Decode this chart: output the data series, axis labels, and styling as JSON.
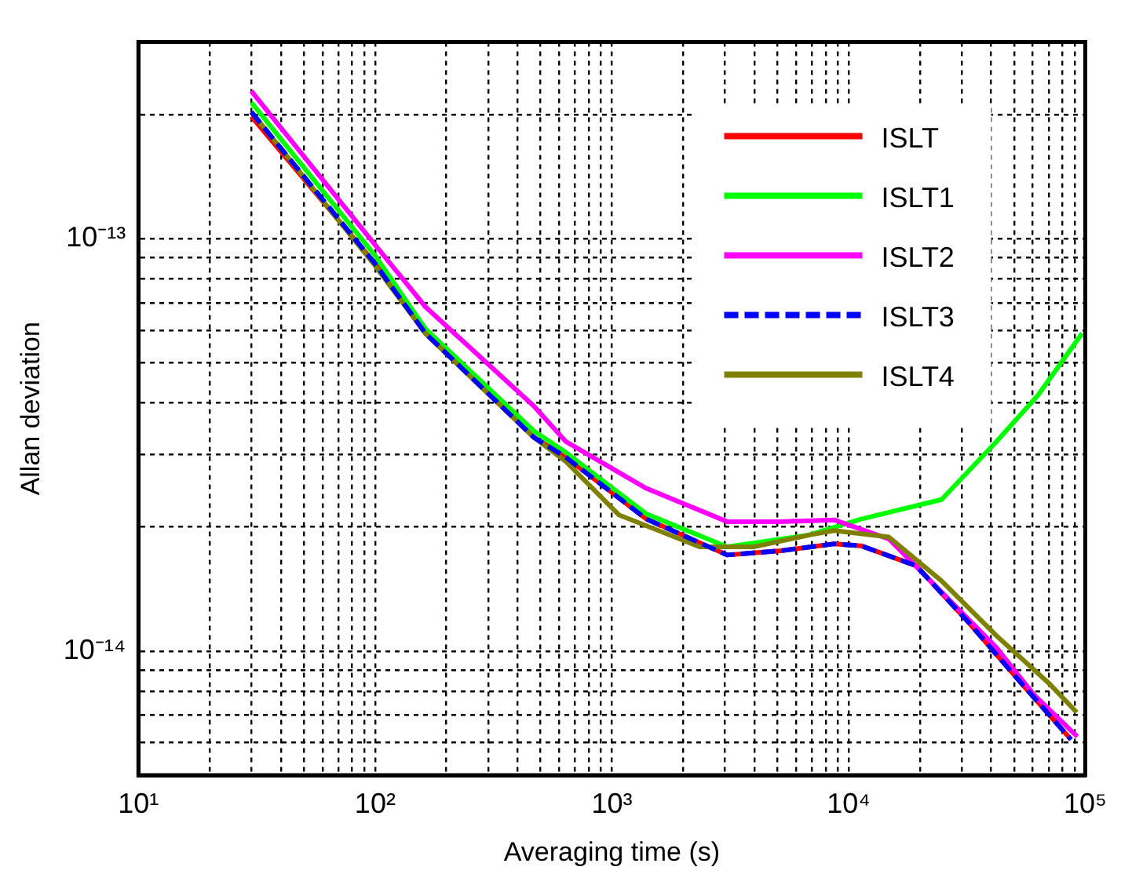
{
  "chart_data": {
    "type": "line",
    "xlabel": "Averaging time (s)",
    "ylabel": "Allan deviation",
    "log": "xy",
    "grid": true,
    "legend": "top right",
    "xlim": [
      10,
      100000
    ],
    "ylim": [
      5e-15,
      3e-13
    ],
    "xticks": [
      {
        "value": 10,
        "label": "10¹"
      },
      {
        "value": 20,
        "label": null
      },
      {
        "value": 30,
        "label": null
      },
      {
        "value": 40,
        "label": null
      },
      {
        "value": 50,
        "label": null
      },
      {
        "value": 60,
        "label": null
      },
      {
        "value": 70,
        "label": null
      },
      {
        "value": 80,
        "label": null
      },
      {
        "value": 90,
        "label": null
      },
      {
        "value": 100,
        "label": "10²"
      },
      {
        "value": 200,
        "label": null
      },
      {
        "value": 300,
        "label": null
      },
      {
        "value": 400,
        "label": null
      },
      {
        "value": 500,
        "label": null
      },
      {
        "value": 600,
        "label": null
      },
      {
        "value": 700,
        "label": null
      },
      {
        "value": 800,
        "label": null
      },
      {
        "value": 900,
        "label": null
      },
      {
        "value": 1000,
        "label": "10³"
      },
      {
        "value": 2000,
        "label": null
      },
      {
        "value": 3000,
        "label": null
      },
      {
        "value": 4000,
        "label": null
      },
      {
        "value": 5000,
        "label": null
      },
      {
        "value": 6000,
        "label": null
      },
      {
        "value": 7000,
        "label": null
      },
      {
        "value": 8000,
        "label": null
      },
      {
        "value": 9000,
        "label": null
      },
      {
        "value": 10000,
        "label": "10⁴"
      },
      {
        "value": 20000,
        "label": null
      },
      {
        "value": 30000,
        "label": null
      },
      {
        "value": 40000,
        "label": null
      },
      {
        "value": 50000,
        "label": null
      },
      {
        "value": 60000,
        "label": null
      },
      {
        "value": 70000,
        "label": null
      },
      {
        "value": 80000,
        "label": null
      },
      {
        "value": 90000,
        "label": null
      },
      {
        "value": 100000,
        "label": "10⁵"
      }
    ],
    "yticks": [
      {
        "value": 5e-15,
        "label": null
      },
      {
        "value": 6e-15,
        "label": null
      },
      {
        "value": 7e-15,
        "label": null
      },
      {
        "value": 8e-15,
        "label": null
      },
      {
        "value": 9e-15,
        "label": null
      },
      {
        "value": 1e-14,
        "label": "10⁻¹⁴"
      },
      {
        "value": 2e-14,
        "label": null
      },
      {
        "value": 3e-14,
        "label": null
      },
      {
        "value": 4e-14,
        "label": null
      },
      {
        "value": 5e-14,
        "label": null
      },
      {
        "value": 6e-14,
        "label": null
      },
      {
        "value": 7e-14,
        "label": null
      },
      {
        "value": 8e-14,
        "label": null
      },
      {
        "value": 9e-14,
        "label": null
      },
      {
        "value": 1e-13,
        "label": "10⁻¹³"
      },
      {
        "value": 2e-13,
        "label": null
      },
      {
        "value": 3e-13,
        "label": null
      }
    ],
    "series": [
      {
        "name": "ISLT",
        "color": "#ff0000",
        "line_style": "solid",
        "x": [
          30,
          100,
          163,
          468,
          640,
          1400,
          3070,
          5150,
          8700,
          11300,
          19300,
          32300,
          54200,
          87000
        ],
        "values": [
          1.98e-13,
          8.7e-14,
          5.9e-14,
          3.3e-14,
          2.95e-14,
          2.09e-14,
          1.71e-14,
          1.75e-14,
          1.82e-14,
          1.8e-14,
          1.61e-14,
          1.17e-14,
          8.3e-15,
          6.1e-15
        ]
      },
      {
        "name": "ISLT1",
        "color": "#00ff00",
        "line_style": "solid",
        "x": [
          30,
          100,
          163,
          468,
          640,
          1400,
          3070,
          6760,
          11300,
          24700,
          42100,
          63000,
          97000
        ],
        "values": [
          2.14e-13,
          9.1e-14,
          6.05e-14,
          3.42e-14,
          3.03e-14,
          2.15e-14,
          1.79e-14,
          1.91e-14,
          2.09e-14,
          2.33e-14,
          3.22e-14,
          4.17e-14,
          5.9e-14
        ]
      },
      {
        "name": "ISLT2",
        "color": "#ff00ff",
        "line_style": "solid",
        "x": [
          30,
          100,
          163,
          468,
          640,
          1400,
          3070,
          5150,
          8700,
          14800,
          24700,
          42100,
          60500,
          92500
        ],
        "values": [
          2.28e-13,
          9.66e-14,
          6.84e-14,
          3.93e-14,
          3.22e-14,
          2.48e-14,
          2.06e-14,
          2.06e-14,
          2.08e-14,
          1.87e-14,
          1.39e-14,
          1.02e-14,
          7.85e-15,
          6.2e-15
        ]
      },
      {
        "name": "ISLT3",
        "color": "#0000ff",
        "line_style": "dashed",
        "x": [
          30,
          100,
          163,
          468,
          640,
          1400,
          3070,
          5150,
          8700,
          11300,
          19300,
          32300,
          54200,
          87000
        ],
        "values": [
          2.03e-13,
          8.7e-14,
          5.9e-14,
          3.3e-14,
          2.95e-14,
          2.09e-14,
          1.71e-14,
          1.75e-14,
          1.82e-14,
          1.8e-14,
          1.61e-14,
          1.17e-14,
          8.3e-15,
          6.1e-15
        ]
      },
      {
        "name": "ISLT4",
        "color": "#808000",
        "line_style": "solid",
        "x": [
          30,
          100,
          163,
          468,
          640,
          1070,
          2350,
          4000,
          6760,
          8700,
          14800,
          24700,
          42100,
          71000,
          92000
        ],
        "values": [
          2.03e-13,
          8.6e-14,
          5.9e-14,
          3.3e-14,
          2.88e-14,
          2.14e-14,
          1.79e-14,
          1.79e-14,
          1.91e-14,
          1.96e-14,
          1.89e-14,
          1.48e-14,
          1.09e-14,
          8.3e-15,
          7.1e-15
        ]
      }
    ]
  }
}
